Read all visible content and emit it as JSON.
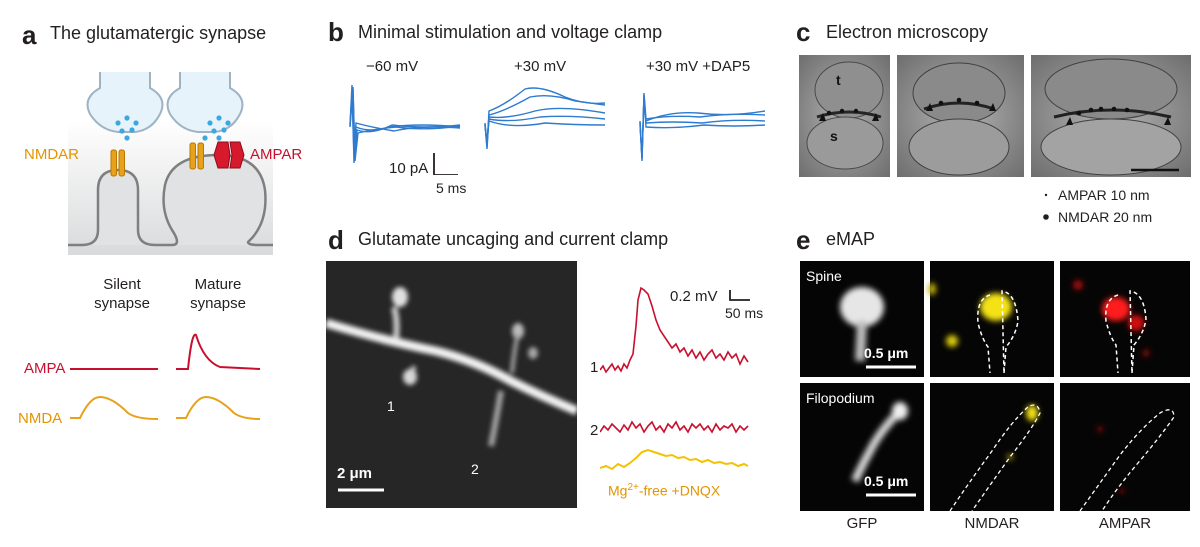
{
  "colors": {
    "ampa": "#c8102e",
    "nmda": "#e8a11b",
    "trace_blue": "#2e7bcf",
    "mgfree": "#f3c200"
  },
  "panel_a": {
    "label": "a",
    "title": "The glutamatergic synapse",
    "nmdar": "NMDAR",
    "ampar": "AMPAR",
    "silent_line1": "Silent",
    "silent_line2": "synapse",
    "mature_line1": "Mature",
    "mature_line2": "synapse",
    "ampa_row": "AMPA",
    "nmda_row": "NMDA"
  },
  "panel_b": {
    "label": "b",
    "title": "Minimal stimulation and voltage clamp",
    "cond1": "−60 mV",
    "cond2": "+30 mV",
    "cond3": "+30 mV +DAP5",
    "scale_y": "10 pA",
    "scale_x": "5 ms"
  },
  "panel_c": {
    "label": "c",
    "title": "Electron microscopy",
    "mark_t": "t",
    "mark_s": "s",
    "legend_ampar": "AMPAR 10 nm",
    "legend_nmdar": "NMDAR 20 nm"
  },
  "panel_d": {
    "label": "d",
    "title": "Glutamate uncaging and current clamp",
    "site1": "1",
    "site2": "2",
    "scale": "2 μm",
    "scale_y": "0.2 mV",
    "scale_x": "50 ms",
    "trace1_label": "1",
    "trace2_label": "2",
    "mg_prefix": "Mg",
    "mg_sup": "2+",
    "mg_suffix": "-free +DNQX"
  },
  "panel_e": {
    "label": "e",
    "title": "eMAP",
    "row1": "Spine",
    "row2": "Filopodium",
    "scale1": "0.5 μm",
    "scale2": "0.5 μm",
    "col1": "GFP",
    "col2": "NMDAR",
    "col3": "AMPAR"
  }
}
